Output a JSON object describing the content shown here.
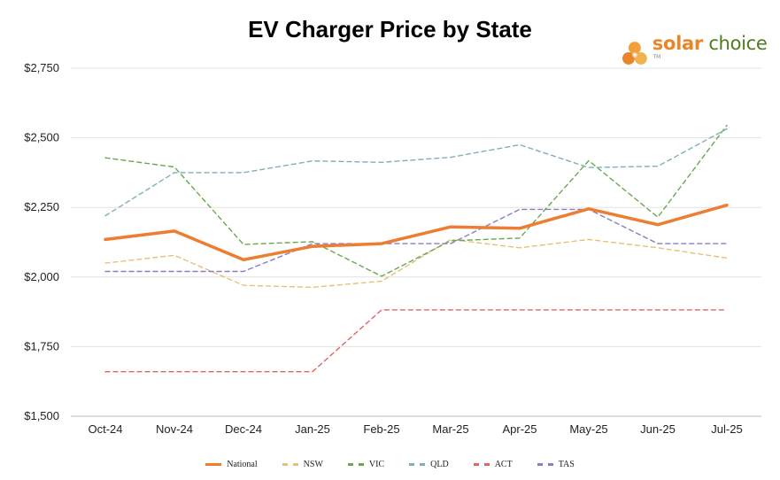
{
  "chart_data": {
    "type": "line",
    "title": "EV Charger Price by State",
    "xlabel": "",
    "ylabel": "",
    "categories": [
      "Oct-24",
      "Nov-24",
      "Dec-24",
      "Jan-25",
      "Feb-25",
      "Mar-25",
      "Apr-25",
      "May-25",
      "Jun-25",
      "Jul-25"
    ],
    "ylim": [
      1500,
      2750
    ],
    "yticks": [
      1500,
      1750,
      2000,
      2250,
      2500,
      2750
    ],
    "ytick_labels": [
      "$1,500",
      "$1,750",
      "$2,000",
      "$2,250",
      "$2,500",
      "$2,750"
    ],
    "grid": true,
    "legend_position": "bottom",
    "series": [
      {
        "name": "National",
        "color": "#ed7d31",
        "style": "solid",
        "values": [
          2135,
          2165,
          2062,
          2110,
          2120,
          2180,
          2175,
          2245,
          2188,
          2258
        ]
      },
      {
        "name": "NSW",
        "color": "#e5c17a",
        "style": "dashed",
        "values": [
          2050,
          2078,
          1970,
          1963,
          1985,
          2135,
          2105,
          2135,
          2105,
          2068
        ]
      },
      {
        "name": "VIC",
        "color": "#6aa84f",
        "style": "dashed",
        "values": [
          2428,
          2395,
          2117,
          2127,
          2003,
          2130,
          2140,
          2418,
          2215,
          2545
        ]
      },
      {
        "name": "QLD",
        "color": "#7fb0b8",
        "style": "dashed",
        "values": [
          2220,
          2375,
          2375,
          2417,
          2412,
          2430,
          2475,
          2393,
          2398,
          2532
        ]
      },
      {
        "name": "ACT",
        "color": "#e06666",
        "style": "dashed",
        "values": [
          1660,
          1660,
          1660,
          1660,
          1882,
          1882,
          1882,
          1882,
          1882,
          1882
        ]
      },
      {
        "name": "TAS",
        "color": "#8e7cc3",
        "style": "dashed",
        "values": [
          2020,
          2020,
          2020,
          2120,
          2120,
          2120,
          2243,
          2243,
          2120,
          2120
        ]
      }
    ]
  },
  "logo": {
    "word1": "solar",
    "word2": "choice",
    "tm": "TM",
    "icon": "orange-dots-logo-icon"
  }
}
